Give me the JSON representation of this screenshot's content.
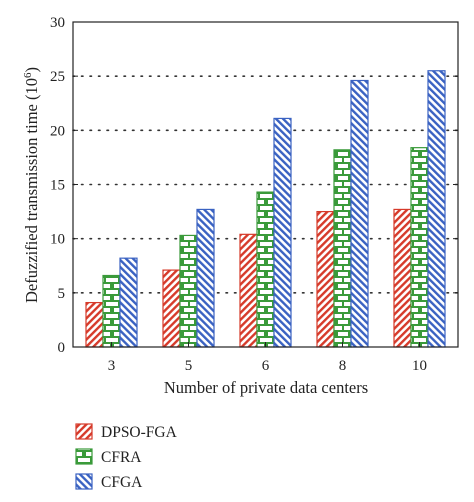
{
  "chart_data": {
    "type": "bar",
    "categories": [
      "3",
      "5",
      "6",
      "8",
      "10"
    ],
    "series": [
      {
        "name": "DPSO-FGA",
        "color": "#d63a2a",
        "pattern": "diagonal-hatch",
        "values": [
          4.1,
          7.1,
          10.4,
          12.5,
          12.7
        ]
      },
      {
        "name": "CFRA",
        "color": "#3a9a3a",
        "pattern": "brick",
        "values": [
          6.6,
          10.3,
          14.3,
          18.2,
          18.4
        ]
      },
      {
        "name": "CFGA",
        "color": "#3a62c2",
        "pattern": "diagonal-hatch",
        "values": [
          8.2,
          12.7,
          21.1,
          24.6,
          25.5
        ]
      }
    ],
    "xlabel": "Number of private data centers",
    "ylabel": "Defuzzified transmission time (10",
    "ylabel_sup": "6",
    "ylabel_close": ")",
    "ylim": [
      0,
      30
    ],
    "yticks": [
      "0",
      "5",
      "10",
      "15",
      "20",
      "25",
      "30"
    ],
    "grid": "horizontal-dotted",
    "legend_position": "bottom-left"
  }
}
